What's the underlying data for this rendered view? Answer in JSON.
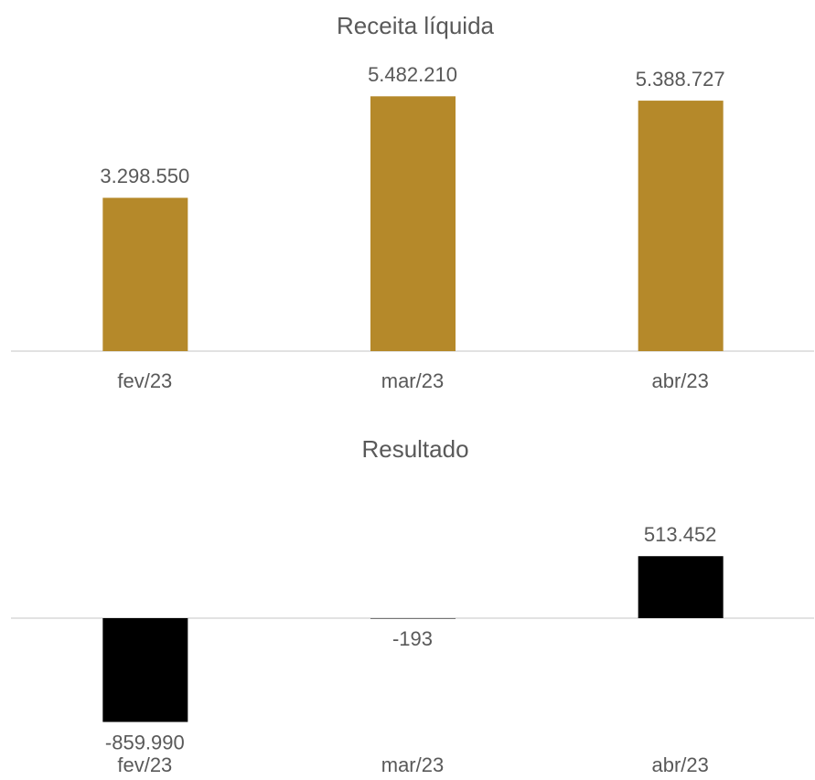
{
  "chart_data": [
    {
      "type": "bar",
      "title": "Receita líquida",
      "categories": [
        "fev/23",
        "mar/23",
        "abr/23"
      ],
      "values": [
        3298550,
        5482210,
        5388727
      ],
      "value_labels": [
        "3.298.550",
        "5.482.210",
        "5.388.727"
      ],
      "color": "#b5892a",
      "ylim": [
        0,
        6000000
      ]
    },
    {
      "type": "bar",
      "title": "Resultado",
      "categories": [
        "fev/23",
        "mar/23",
        "abr/23"
      ],
      "values": [
        -859990,
        -193,
        513452
      ],
      "value_labels": [
        "-859.990",
        "-193",
        "513.452"
      ],
      "color": "#000000",
      "ylim": [
        -1000000,
        1000000
      ]
    }
  ]
}
